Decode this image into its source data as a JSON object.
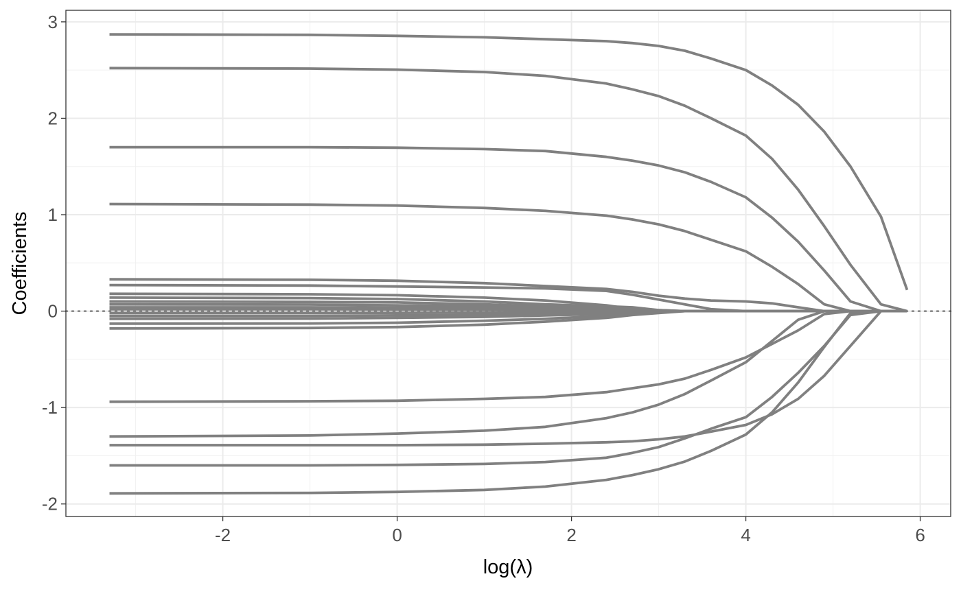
{
  "chart_data": {
    "type": "line",
    "title": "",
    "xlabel": "log(λ)",
    "ylabel": "Coefficients",
    "xlim": [
      -3.8,
      6.35
    ],
    "ylim": [
      -2.13,
      3.12
    ],
    "x_ticks": [
      -2,
      0,
      2,
      4,
      6
    ],
    "x_tick_labels": [
      "-2",
      "0",
      "2",
      "4",
      "6"
    ],
    "y_ticks": [
      -2,
      -1,
      0,
      1,
      2,
      3
    ],
    "y_tick_labels": [
      "-2",
      "-1",
      "0",
      "1",
      "2",
      "3"
    ],
    "grid": true,
    "legend": "none",
    "reference_line": {
      "y": 0,
      "style": "dotted"
    },
    "line_color": "#808080",
    "x": [
      -3.3,
      -1.0,
      0.0,
      1.0,
      1.7,
      2.4,
      2.7,
      3.0,
      3.3,
      3.6,
      4.0,
      4.3,
      4.6,
      4.9,
      5.2,
      5.55,
      5.85
    ],
    "series": [
      {
        "values": [
          2.87,
          2.865,
          2.855,
          2.84,
          2.82,
          2.8,
          2.78,
          2.75,
          2.7,
          2.62,
          2.5,
          2.34,
          2.14,
          1.86,
          1.5,
          0.98,
          0.22
        ]
      },
      {
        "values": [
          2.52,
          2.515,
          2.505,
          2.48,
          2.44,
          2.36,
          2.3,
          2.23,
          2.13,
          2.0,
          1.82,
          1.58,
          1.26,
          0.88,
          0.48,
          0.07,
          0.0
        ]
      },
      {
        "values": [
          1.7,
          1.7,
          1.695,
          1.68,
          1.66,
          1.6,
          1.56,
          1.51,
          1.44,
          1.34,
          1.18,
          0.97,
          0.72,
          0.42,
          0.1,
          0.0,
          0.0
        ]
      },
      {
        "values": [
          1.11,
          1.105,
          1.095,
          1.07,
          1.04,
          0.99,
          0.95,
          0.9,
          0.83,
          0.74,
          0.62,
          0.46,
          0.28,
          0.07,
          0.0,
          0.0,
          0.0
        ]
      },
      {
        "values": [
          0.33,
          0.325,
          0.315,
          0.29,
          0.26,
          0.23,
          0.2,
          0.16,
          0.13,
          0.11,
          0.1,
          0.08,
          0.04,
          0.0,
          0.0,
          0.0,
          0.0
        ]
      },
      {
        "values": [
          0.27,
          0.265,
          0.255,
          0.245,
          0.235,
          0.21,
          0.17,
          0.12,
          0.07,
          0.02,
          0.0,
          0.0,
          0.0,
          0.0,
          0.0,
          0.0,
          0.0
        ]
      },
      {
        "values": [
          0.18,
          0.175,
          0.165,
          0.14,
          0.11,
          0.06,
          0.02,
          0.0,
          0.0,
          0.0,
          0.0,
          0.0,
          0.0,
          0.0,
          0.0,
          0.0,
          0.0
        ]
      },
      {
        "values": [
          0.14,
          0.135,
          0.125,
          0.1,
          0.07,
          0.05,
          0.04,
          0.01,
          0.0,
          0.0,
          0.0,
          0.0,
          0.0,
          0.0,
          0.0,
          0.0,
          0.0
        ]
      },
      {
        "values": [
          0.1,
          0.095,
          0.09,
          0.07,
          0.05,
          0.03,
          0.02,
          0.01,
          0.0,
          0.0,
          0.0,
          0.0,
          0.0,
          0.0,
          0.0,
          0.0,
          0.0
        ]
      },
      {
        "values": [
          0.07,
          0.068,
          0.06,
          0.05,
          0.04,
          0.02,
          0.01,
          0.0,
          0.0,
          0.0,
          0.0,
          0.0,
          0.0,
          0.0,
          0.0,
          0.0,
          0.0
        ]
      },
      {
        "values": [
          0.04,
          0.04,
          0.035,
          0.03,
          0.02,
          0.01,
          0.0,
          0.0,
          0.0,
          0.0,
          0.0,
          0.0,
          0.0,
          0.0,
          0.0,
          0.0,
          0.0
        ]
      },
      {
        "values": [
          0.02,
          0.02,
          0.018,
          0.015,
          0.01,
          0.005,
          0.0,
          0.0,
          0.0,
          0.0,
          0.0,
          0.0,
          0.0,
          0.0,
          0.0,
          0.0,
          0.0
        ]
      },
      {
        "values": [
          -0.02,
          -0.02,
          -0.018,
          -0.015,
          -0.01,
          -0.005,
          0.0,
          0.0,
          0.0,
          0.0,
          0.0,
          0.0,
          0.0,
          0.0,
          0.0,
          0.0,
          0.0
        ]
      },
      {
        "values": [
          -0.05,
          -0.05,
          -0.045,
          -0.04,
          -0.03,
          -0.02,
          -0.01,
          0.0,
          0.0,
          0.0,
          0.0,
          0.0,
          0.0,
          0.0,
          0.0,
          0.0,
          0.0
        ]
      },
      {
        "values": [
          -0.08,
          -0.078,
          -0.07,
          -0.06,
          -0.045,
          -0.03,
          -0.015,
          0.0,
          0.0,
          0.0,
          0.0,
          0.0,
          0.0,
          0.0,
          0.0,
          0.0,
          0.0
        ]
      },
      {
        "values": [
          -0.13,
          -0.128,
          -0.12,
          -0.1,
          -0.08,
          -0.05,
          -0.03,
          -0.01,
          0.0,
          0.0,
          0.0,
          0.0,
          0.0,
          0.0,
          0.0,
          0.0,
          0.0
        ]
      },
      {
        "values": [
          -0.18,
          -0.175,
          -0.165,
          -0.14,
          -0.11,
          -0.07,
          -0.04,
          -0.02,
          0.0,
          0.0,
          0.0,
          0.0,
          0.0,
          0.0,
          0.0,
          0.0,
          0.0
        ]
      },
      {
        "values": [
          -0.94,
          -0.935,
          -0.93,
          -0.91,
          -0.89,
          -0.84,
          -0.8,
          -0.76,
          -0.7,
          -0.61,
          -0.48,
          -0.34,
          -0.2,
          -0.03,
          0.0,
          0.0,
          0.0
        ]
      },
      {
        "values": [
          -1.3,
          -1.29,
          -1.27,
          -1.24,
          -1.2,
          -1.11,
          -1.05,
          -0.97,
          -0.86,
          -0.72,
          -0.53,
          -0.31,
          -0.09,
          0.0,
          0.0,
          0.0,
          0.0
        ]
      },
      {
        "values": [
          -1.39,
          -1.39,
          -1.39,
          -1.385,
          -1.375,
          -1.36,
          -1.35,
          -1.33,
          -1.3,
          -1.25,
          -1.18,
          -1.07,
          -0.91,
          -0.67,
          -0.36,
          0.0,
          0.0
        ]
      },
      {
        "values": [
          -1.6,
          -1.6,
          -1.595,
          -1.585,
          -1.565,
          -1.52,
          -1.47,
          -1.41,
          -1.32,
          -1.22,
          -1.1,
          -0.89,
          -0.64,
          -0.36,
          -0.04,
          0.0,
          0.0
        ]
      },
      {
        "values": [
          -1.89,
          -1.885,
          -1.875,
          -1.855,
          -1.82,
          -1.75,
          -1.7,
          -1.64,
          -1.56,
          -1.45,
          -1.28,
          -1.05,
          -0.74,
          -0.37,
          -0.02,
          0.0,
          0.0
        ]
      }
    ]
  }
}
